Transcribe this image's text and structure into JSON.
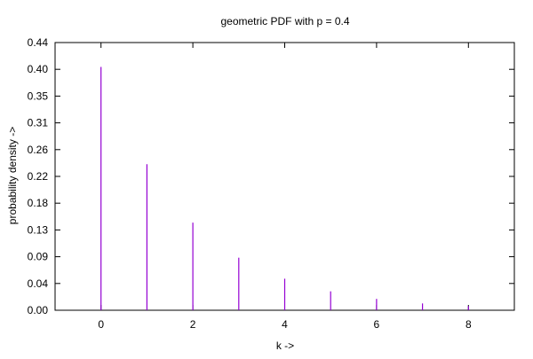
{
  "chart_data": {
    "type": "bar",
    "style": "impulses",
    "title": "geometric PDF with p = 0.4",
    "xlabel": "k ->",
    "ylabel": "probability density ->",
    "xlim": [
      -1,
      9
    ],
    "ylim": [
      0,
      0.44
    ],
    "xticks": [
      "0",
      "2",
      "4",
      "6",
      "8"
    ],
    "yticks": [
      "0.00",
      "0.04",
      "0.09",
      "0.13",
      "0.18",
      "0.22",
      "0.26",
      "0.31",
      "0.35",
      "0.40",
      "0.44"
    ],
    "grid": false,
    "legend": "none",
    "color": "#9400d3",
    "series": [
      {
        "x": [
          0,
          1,
          2,
          3,
          4,
          5,
          6,
          7,
          8
        ],
        "values": [
          0.4,
          0.24,
          0.144,
          0.0864,
          0.05184,
          0.031104,
          0.0186624,
          0.01119744,
          0.006718464
        ]
      }
    ]
  }
}
